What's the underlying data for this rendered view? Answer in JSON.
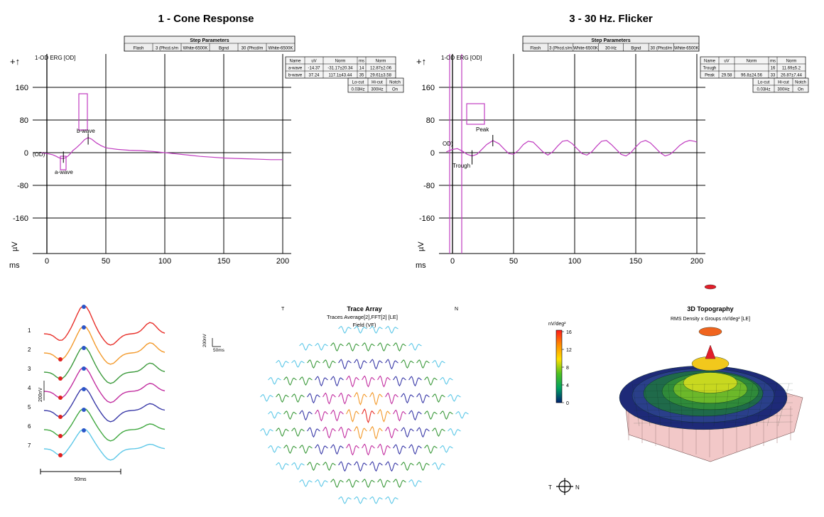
{
  "colors": {
    "erg_trace": "#c03cc0",
    "marker": "#c03cc0",
    "grid": "#000000",
    "trace_palette": [
      "#e8302a",
      "#f39a2c",
      "#3c9a3c",
      "#c22ea0",
      "#3a3aa8",
      "#40a840",
      "#5ec8e8"
    ],
    "peak_dot": "#2a55c8",
    "trough_dot": "#e02020",
    "surface_base": "#f4c8c8"
  },
  "cone_panel": {
    "title": "1 - Cone Response",
    "step_parameters_title": "Step Parameters",
    "step_parameters": [
      "Flash",
      "3 (Phcd.s/m",
      "White-6500K",
      "Bgnd",
      "30 (Phcd/m",
      "White-6500K"
    ],
    "channel_label": "1-OD ERG [OD]",
    "trace_tag": "(OD)",
    "table_headers": [
      "Name",
      "uV",
      "Norm",
      "ms",
      "Norm"
    ],
    "table_rows": [
      [
        "a-wave",
        "-14.37",
        "-31.17±20.34",
        "14",
        "12.87±2.06"
      ],
      [
        "b-wave",
        "37.24",
        "117.1±43.44",
        "35",
        "29.61±3.58"
      ]
    ],
    "filter_headers": [
      "Lo-cut",
      "Hi-cut",
      "Notch"
    ],
    "filter_values": [
      "0.03Hz",
      "300Hz",
      "On"
    ],
    "markers": [
      "b-wave",
      "a-wave"
    ]
  },
  "flicker_panel": {
    "title": "3 - 30 Hz. Flicker",
    "step_parameters_title": "Step Parameters",
    "step_parameters": [
      "Flash",
      "3 (Phcd.s/m",
      "White-6500K",
      "30-Hz",
      "Bgnd",
      "30 (Phcd/m",
      "White-6500K"
    ],
    "channel_label": "1-OD ERG [OD]",
    "trace_tag": "OD)",
    "table_headers": [
      "Name",
      "uV",
      "Norm",
      "ms",
      "Norm"
    ],
    "table_rows": [
      [
        "Trough",
        "",
        "",
        "16",
        "11.69±5.2"
      ],
      [
        "Peak",
        "29.58",
        "96.8±24.56",
        "33",
        "26.87±7.44"
      ]
    ],
    "filter_headers": [
      "Lo-cut",
      "Hi-cut",
      "Notch"
    ],
    "filter_values": [
      "0.03Hz",
      "300Hz",
      "On"
    ],
    "markers": [
      "Peak",
      "Trough"
    ]
  },
  "trace_stack": {
    "row_labels": [
      "1",
      "2",
      "3",
      "4",
      "5",
      "6",
      "7"
    ],
    "amp_scale": "200nV",
    "time_scale": "50ms"
  },
  "trace_array": {
    "title": "Trace Array",
    "subtitle": "Traces Average[2],FFT[2] [LE]",
    "field_label": "Field (VF)",
    "left_tag": "T",
    "right_tag": "N",
    "scale_amp": "200nV",
    "scale_time": "50ms"
  },
  "color_bar": {
    "unit": "nV/deg²",
    "ticks": [
      "16",
      "12",
      "8",
      "4",
      "0"
    ],
    "stops": [
      "#ff1a1a",
      "#ff8c00",
      "#ffe000",
      "#4cc020",
      "#00a060",
      "#002070"
    ]
  },
  "topography": {
    "title": "3D Topography",
    "subtitle": "RMS Density x Groups nV/deg² [LE]",
    "surface_colors": [
      "#1e2a78",
      "#2a3f8a",
      "#1f6a4a",
      "#2f8a3a",
      "#6cb82a",
      "#c8d820",
      "#f2c81c",
      "#f0641e",
      "#e21e2a",
      "#f2c8c8"
    ]
  },
  "orientation": {
    "left": "T",
    "right": "N"
  },
  "chart_data": [
    {
      "type": "line",
      "title": "1 - Cone Response",
      "xlabel": "ms",
      "ylabel": "µV",
      "xlim": [
        0,
        200
      ],
      "ylim": [
        -200,
        200
      ],
      "x_ticks": [
        0,
        50,
        100,
        150,
        200
      ],
      "y_ticks": [
        160,
        80,
        0,
        -80,
        -160
      ],
      "grid": true,
      "series": [
        {
          "x": [
            -5,
            0,
            5,
            8,
            10,
            12,
            14,
            16,
            18,
            20,
            22,
            25,
            28,
            30,
            32,
            35,
            38,
            42,
            46,
            50,
            55,
            60,
            70,
            80,
            90,
            100,
            110,
            120,
            130,
            140,
            150,
            160,
            170,
            180,
            190,
            200
          ],
          "y": [
            0,
            -2,
            -5,
            -9,
            -12,
            -14,
            -14.4,
            -12,
            -8,
            -2,
            5,
            12,
            20,
            26,
            32,
            37,
            33,
            24,
            17,
            12,
            10,
            8,
            6,
            5,
            3,
            0,
            -3,
            -6,
            -9,
            -11,
            -13,
            -14,
            -15,
            -16,
            -17,
            -17
          ]
        }
      ],
      "annotations": [
        {
          "label": "a-wave",
          "x": 14,
          "y": -14.37
        },
        {
          "label": "b-wave",
          "x": 35,
          "y": 37.24
        }
      ]
    },
    {
      "type": "line",
      "title": "3 - 30 Hz. Flicker",
      "xlabel": "ms",
      "ylabel": "µV",
      "xlim": [
        0,
        200
      ],
      "ylim": [
        -200,
        200
      ],
      "x_ticks": [
        0,
        50,
        100,
        150,
        200
      ],
      "y_ticks": [
        160,
        80,
        0,
        -80,
        -160
      ],
      "grid": true,
      "series": [
        {
          "x": [
            -5,
            0,
            4,
            8,
            12,
            16,
            20,
            24,
            28,
            33,
            38,
            42,
            46,
            50,
            54,
            58,
            62,
            66,
            70,
            74,
            78,
            82,
            86,
            90,
            94,
            98,
            102,
            106,
            110,
            114,
            118,
            122,
            126,
            130,
            134,
            138,
            142,
            146,
            150,
            154,
            158,
            162,
            166,
            170,
            174,
            178,
            182,
            186,
            190,
            194,
            198,
            200
          ],
          "y": [
            2,
            8,
            10,
            4,
            -4,
            -8,
            -4,
            8,
            20,
            29.58,
            22,
            10,
            -2,
            -4,
            6,
            20,
            28,
            26,
            14,
            2,
            -6,
            2,
            16,
            28,
            30,
            22,
            10,
            -2,
            -6,
            2,
            16,
            28,
            30,
            20,
            8,
            -4,
            -8,
            0,
            14,
            26,
            30,
            24,
            12,
            0,
            -8,
            -4,
            6,
            18,
            26,
            30,
            28,
            26
          ]
        }
      ],
      "annotations": [
        {
          "label": "Trough",
          "x": 16,
          "y": -8
        },
        {
          "label": "Peak",
          "x": 33,
          "y": 29.58
        }
      ]
    }
  ]
}
